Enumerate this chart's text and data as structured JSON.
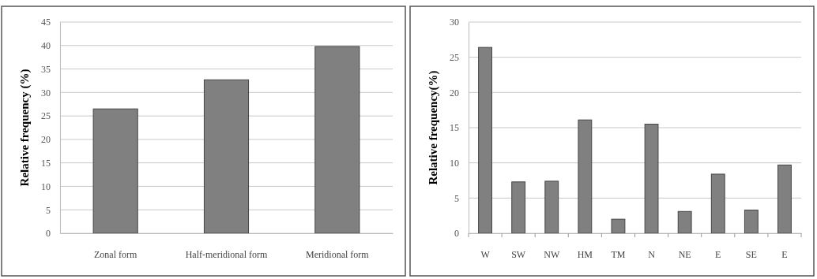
{
  "chart_data": [
    {
      "type": "bar",
      "ylabel": "Relative frequency (%)",
      "categories": [
        "Zonal form",
        "Half-meridional form",
        "Meridional form"
      ],
      "values": [
        26.5,
        32.7,
        39.8
      ],
      "color": "#808080",
      "ylim": [
        0,
        45
      ],
      "yticks": [
        0,
        5,
        10,
        15,
        20,
        25,
        30,
        35,
        40,
        45
      ],
      "grid": "y"
    },
    {
      "type": "bar",
      "ylabel": "Relative frequency(%)",
      "categories": [
        "W",
        "SW",
        "NW",
        "HM",
        "TM",
        "N",
        "NE",
        "E",
        "SE",
        "E"
      ],
      "values": [
        26.4,
        7.3,
        7.4,
        16.1,
        2.0,
        15.5,
        3.1,
        8.4,
        3.3,
        9.7
      ],
      "color": "#808080",
      "ylim": [
        0,
        30
      ],
      "yticks": [
        0,
        5,
        10,
        15,
        20,
        25,
        30
      ],
      "grid": "y"
    }
  ]
}
